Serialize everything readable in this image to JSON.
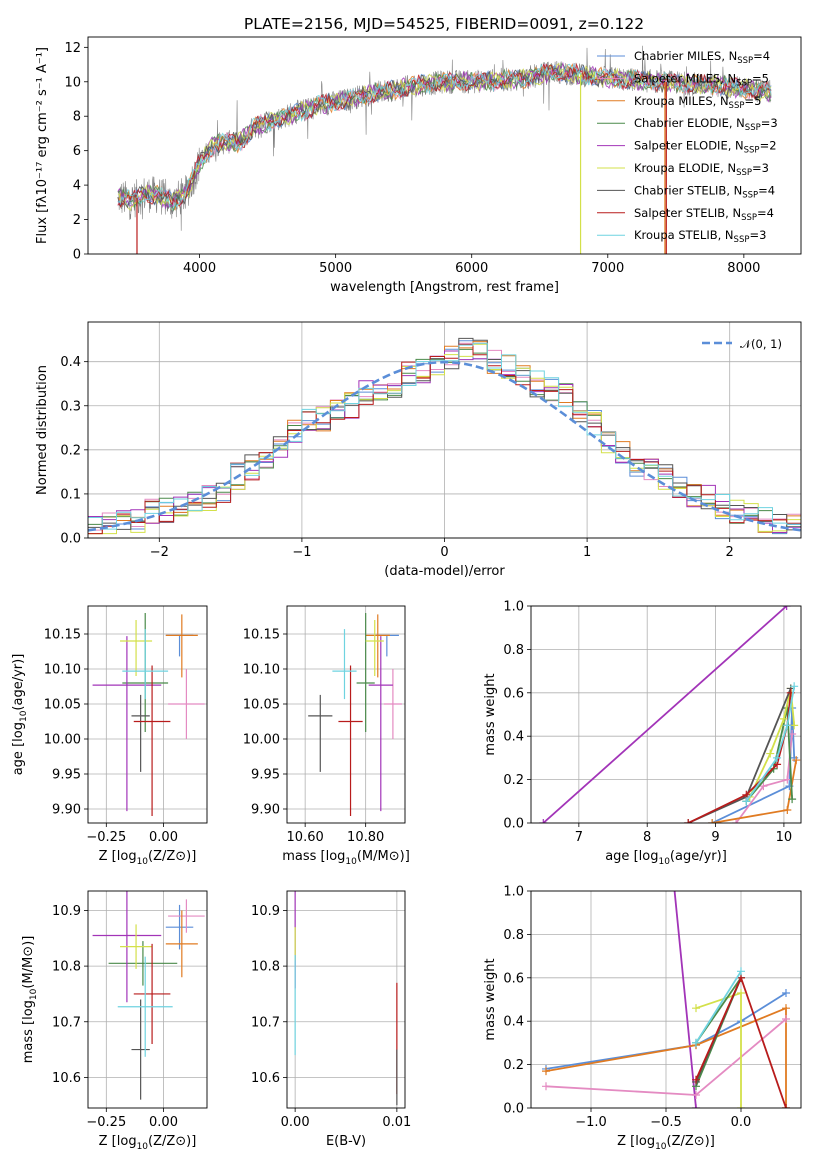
{
  "title": "PLATE=2156, MJD=54525, FIBERID=0091, z=0.122",
  "colors": {
    "Chabrier MILES": "#5b8ed8",
    "Salpeter MILES": "#e48bc2",
    "Kroupa MILES": "#e07b22",
    "Chabrier ELODIE": "#4a8a4a",
    "Salpeter ELODIE": "#a234b8",
    "Kroupa ELODIE": "#d3e04a",
    "Chabrier STELIB": "#555555",
    "Salpeter STELIB": "#b81c1c",
    "Kroupa STELIB": "#6fd3e0",
    "data": "#808080",
    "normal": "#5b8ed8"
  },
  "chart_data": [
    {
      "type": "line",
      "title": "PLATE=2156, MJD=54525, FIBERID=0091, z=0.122",
      "xlabel": "wavelength [Angstrom, rest frame]",
      "ylabel": "Flux [fλ10⁻¹⁷ erg cm⁻² s⁻¹ A⁻¹]",
      "xlim": [
        3180,
        8420
      ],
      "ylim": [
        0,
        12.6
      ],
      "xticks": [
        4000,
        5000,
        6000,
        7000,
        8000
      ],
      "yticks": [
        0,
        2,
        4,
        6,
        8,
        10,
        12
      ],
      "legend_position": "top-right",
      "continuum": {
        "x": [
          3400,
          3500,
          3600,
          3700,
          3800,
          3900,
          4000,
          4100,
          4200,
          4300,
          4400,
          4500,
          4600,
          4700,
          4800,
          4900,
          5000,
          5200,
          5400,
          5600,
          5800,
          6000,
          6200,
          6400,
          6600,
          6800,
          7000,
          7200,
          7400,
          7600,
          7800,
          8000,
          8200
        ],
        "y": [
          3.3,
          3.1,
          3.5,
          3.4,
          3.0,
          3.5,
          5.3,
          6.3,
          6.5,
          6.5,
          7.4,
          7.7,
          7.9,
          8.2,
          8.4,
          8.7,
          8.8,
          9.2,
          9.5,
          9.8,
          10.0,
          10.0,
          10.1,
          10.2,
          10.6,
          10.4,
          10.2,
          10.1,
          10.0,
          9.9,
          9.8,
          9.6,
          9.4
        ]
      },
      "series": [
        {
          "name": "Chabrier MILES, NSSP=4",
          "legend_base": "Chabrier MILES, N",
          "legend_sub": "SSP",
          "legend_tail": "=4"
        },
        {
          "name": "Salpeter MILES, NSSP=5",
          "legend_base": "Salpeter MILES, N",
          "legend_sub": "SSP",
          "legend_tail": "=5"
        },
        {
          "name": "Kroupa MILES, NSSP=5",
          "legend_base": "Kroupa MILES, N",
          "legend_sub": "SSP",
          "legend_tail": "=5"
        },
        {
          "name": "Chabrier ELODIE, NSSP=3",
          "legend_base": "Chabrier ELODIE, N",
          "legend_sub": "SSP",
          "legend_tail": "=3"
        },
        {
          "name": "Salpeter ELODIE, NSSP=2",
          "legend_base": "Salpeter ELODIE, N",
          "legend_sub": "SSP",
          "legend_tail": "=2"
        },
        {
          "name": "Kroupa ELODIE, NSSP=3",
          "legend_base": "Kroupa ELODIE, N",
          "legend_sub": "SSP",
          "legend_tail": "=3"
        },
        {
          "name": "Chabrier STELIB, NSSP=4",
          "legend_base": "Chabrier STELIB, N",
          "legend_sub": "SSP",
          "legend_tail": "=4"
        },
        {
          "name": "Salpeter STELIB, NSSP=4",
          "legend_base": "Salpeter STELIB, N",
          "legend_sub": "SSP",
          "legend_tail": "=4"
        },
        {
          "name": "Kroupa STELIB, NSSP=3",
          "legend_base": "Kroupa STELIB, N",
          "legend_sub": "SSP",
          "legend_tail": "=3"
        }
      ],
      "drops": [
        {
          "model": "Salpeter STELIB",
          "x": 3540
        },
        {
          "model": "Kroupa ELODIE",
          "x": 6800
        },
        {
          "model": "Kroupa MILES",
          "x": 7420
        },
        {
          "model": "Salpeter STELIB",
          "x": 7430
        }
      ]
    },
    {
      "type": "line",
      "xlabel": "(data-model)/error",
      "ylabel": "Normed distribution",
      "xlim": [
        -2.5,
        2.5
      ],
      "ylim": [
        0,
        0.49
      ],
      "xticks": [
        -2,
        -1,
        0,
        1,
        2
      ],
      "yticks": [
        0.0,
        0.1,
        0.2,
        0.3,
        0.4
      ],
      "legend": "𝒩(0, 1)",
      "legend_position": "top-right",
      "bin_edges": [
        -2.5,
        -2.4,
        -2.3,
        -2.2,
        -2.1,
        -2.0,
        -1.9,
        -1.8,
        -1.7,
        -1.6,
        -1.5,
        -1.4,
        -1.3,
        -1.2,
        -1.1,
        -1.0,
        -0.9,
        -0.8,
        -0.7,
        -0.6,
        -0.5,
        -0.4,
        -0.3,
        -0.2,
        -0.1,
        0.0,
        0.1,
        0.2,
        0.3,
        0.4,
        0.5,
        0.6,
        0.7,
        0.8,
        0.9,
        1.0,
        1.1,
        1.2,
        1.3,
        1.4,
        1.5,
        1.6,
        1.7,
        1.8,
        1.9,
        2.0,
        2.1,
        2.2,
        2.3,
        2.4,
        2.5
      ],
      "base_values": [
        0.02,
        0.03,
        0.035,
        0.04,
        0.06,
        0.065,
        0.07,
        0.08,
        0.09,
        0.1,
        0.14,
        0.16,
        0.17,
        0.2,
        0.24,
        0.27,
        0.27,
        0.29,
        0.3,
        0.33,
        0.33,
        0.34,
        0.37,
        0.38,
        0.4,
        0.41,
        0.43,
        0.42,
        0.4,
        0.39,
        0.37,
        0.35,
        0.34,
        0.32,
        0.29,
        0.26,
        0.22,
        0.19,
        0.16,
        0.15,
        0.14,
        0.12,
        0.1,
        0.09,
        0.07,
        0.06,
        0.05,
        0.04,
        0.03,
        0.025
      ],
      "normal_curve": {
        "mean": 0,
        "sigma": 1
      }
    },
    {
      "type": "scatter",
      "xlabel": "Z [log10(Z/Z⊙)]",
      "ylabel": "age  [log10(age/yr)]",
      "xlim": [
        -0.33,
        0.19
      ],
      "ylim": [
        9.88,
        10.19
      ],
      "xticks": [
        -0.25,
        0.0
      ],
      "yticks": [
        9.9,
        9.95,
        10.0,
        10.05,
        10.1,
        10.15
      ],
      "points": [
        {
          "model": "Chabrier MILES",
          "x": 0.07,
          "y": 10.148,
          "xerr": 0.06,
          "yerr_lo": 0.03,
          "yerr_hi": 0.0
        },
        {
          "model": "Salpeter MILES",
          "x": 0.1,
          "y": 10.05,
          "xerr": 0.08,
          "yerr_lo": 0.05,
          "yerr_hi": 0.05
        },
        {
          "model": "Kroupa MILES",
          "x": 0.08,
          "y": 10.148,
          "xerr": 0.07,
          "yerr_lo": 0.06,
          "yerr_hi": 0.03
        },
        {
          "model": "Chabrier ELODIE",
          "x": -0.08,
          "y": 10.08,
          "xerr": 0.1,
          "yerr_lo": 0.07,
          "yerr_hi": 0.1
        },
        {
          "model": "Salpeter ELODIE",
          "x": -0.16,
          "y": 10.077,
          "xerr": 0.15,
          "yerr_lo": 0.18,
          "yerr_hi": 0.07
        },
        {
          "model": "Kroupa ELODIE",
          "x": -0.12,
          "y": 10.14,
          "xerr": 0.07,
          "yerr_lo": 0.05,
          "yerr_hi": 0.03
        },
        {
          "model": "Chabrier STELIB",
          "x": -0.1,
          "y": 10.033,
          "xerr": 0.04,
          "yerr_lo": 0.08,
          "yerr_hi": 0.03
        },
        {
          "model": "Salpeter STELIB",
          "x": -0.05,
          "y": 10.025,
          "xerr": 0.08,
          "yerr_lo": 0.135,
          "yerr_hi": 0.08
        },
        {
          "model": "Kroupa STELIB",
          "x": -0.08,
          "y": 10.097,
          "xerr": 0.1,
          "yerr_lo": 0.04,
          "yerr_hi": 0.06
        }
      ]
    },
    {
      "type": "scatter",
      "xlabel": "mass [log10(M/M⊙)]",
      "ylabel": "",
      "xlim": [
        10.54,
        10.93
      ],
      "ylim": [
        9.88,
        10.19
      ],
      "xticks": [
        10.6,
        10.8
      ],
      "yticks": [
        9.9,
        9.95,
        10.0,
        10.05,
        10.1,
        10.15
      ],
      "points": [
        {
          "model": "Chabrier MILES",
          "x": 10.87,
          "y": 10.148,
          "xerr": 0.04,
          "yerr_lo": 0.03,
          "yerr_hi": 0.0
        },
        {
          "model": "Salpeter MILES",
          "x": 10.89,
          "y": 10.05,
          "xerr": 0.03,
          "yerr_lo": 0.05,
          "yerr_hi": 0.05
        },
        {
          "model": "Kroupa MILES",
          "x": 10.84,
          "y": 10.148,
          "xerr": 0.04,
          "yerr_lo": 0.06,
          "yerr_hi": 0.03
        },
        {
          "model": "Chabrier ELODIE",
          "x": 10.8,
          "y": 10.08,
          "xerr": 0.03,
          "yerr_lo": 0.07,
          "yerr_hi": 0.1
        },
        {
          "model": "Salpeter ELODIE",
          "x": 10.85,
          "y": 10.077,
          "xerr": 0.04,
          "yerr_lo": 0.18,
          "yerr_hi": 0.07
        },
        {
          "model": "Kroupa ELODIE",
          "x": 10.83,
          "y": 10.14,
          "xerr": 0.03,
          "yerr_lo": 0.05,
          "yerr_hi": 0.03
        },
        {
          "model": "Chabrier STELIB",
          "x": 10.65,
          "y": 10.033,
          "xerr": 0.04,
          "yerr_lo": 0.08,
          "yerr_hi": 0.03
        },
        {
          "model": "Salpeter STELIB",
          "x": 10.75,
          "y": 10.025,
          "xerr": 0.04,
          "yerr_lo": 0.135,
          "yerr_hi": 0.08
        },
        {
          "model": "Kroupa STELIB",
          "x": 10.73,
          "y": 10.097,
          "xerr": 0.04,
          "yerr_lo": 0.04,
          "yerr_hi": 0.06
        }
      ]
    },
    {
      "type": "line",
      "xlabel": "age  [log10(age/yr)]",
      "ylabel": "mass weight",
      "xlim": [
        6.3,
        10.25
      ],
      "ylim": [
        0,
        1.0
      ],
      "xticks": [
        7,
        8,
        9,
        10
      ],
      "yticks": [
        0.0,
        0.2,
        0.4,
        0.6,
        0.8,
        1.0
      ],
      "series": [
        {
          "model": "Salpeter ELODIE",
          "x": [
            6.48,
            10.04
          ],
          "y": [
            0.0,
            1.0
          ]
        },
        {
          "model": "Chabrier MILES",
          "x": [
            8.95,
            10.08,
            10.12,
            10.15
          ],
          "y": [
            0.0,
            0.17,
            0.53,
            0.3
          ]
        },
        {
          "model": "Salpeter MILES",
          "x": [
            9.3,
            9.7,
            10.05,
            10.12
          ],
          "y": [
            0.0,
            0.17,
            0.2,
            0.41
          ]
        },
        {
          "model": "Kroupa MILES",
          "x": [
            8.95,
            10.05,
            10.18
          ],
          "y": [
            0.0,
            0.06,
            0.29
          ]
        },
        {
          "model": "Chabrier ELODIE",
          "x": [
            9.45,
            9.85,
            10.05,
            10.12
          ],
          "y": [
            0.1,
            0.25,
            0.53,
            0.11
          ]
        },
        {
          "model": "Kroupa ELODIE",
          "x": [
            9.5,
            9.8,
            10.0,
            10.1,
            10.15
          ],
          "y": [
            0.12,
            0.32,
            0.48,
            0.62,
            0.45
          ]
        },
        {
          "model": "Chabrier STELIB",
          "x": [
            8.6,
            9.45,
            10.1
          ],
          "y": [
            0.0,
            0.12,
            0.62
          ]
        },
        {
          "model": "Salpeter STELIB",
          "x": [
            8.6,
            9.45,
            9.9,
            10.05,
            10.1
          ],
          "y": [
            0.0,
            0.13,
            0.27,
            0.45,
            0.6
          ]
        },
        {
          "model": "Kroupa STELIB",
          "x": [
            9.45,
            9.9,
            10.05,
            10.15
          ],
          "y": [
            0.1,
            0.3,
            0.45,
            0.63
          ]
        }
      ]
    },
    {
      "type": "scatter",
      "xlabel": "Z [log10(Z/Z⊙)]",
      "ylabel": "mass [log10(M/M⊙)]",
      "xlim": [
        -0.33,
        0.19
      ],
      "ylim": [
        10.545,
        10.935
      ],
      "xticks": [
        -0.25,
        0.0
      ],
      "yticks": [
        10.6,
        10.7,
        10.8,
        10.9
      ],
      "points": [
        {
          "model": "Chabrier MILES",
          "x": 0.07,
          "y": 10.87,
          "xerr": 0.06,
          "yerr": 0.04
        },
        {
          "model": "Salpeter MILES",
          "x": 0.1,
          "y": 10.89,
          "xerr": 0.08,
          "yerr": 0.03
        },
        {
          "model": "Kroupa MILES",
          "x": 0.08,
          "y": 10.84,
          "xerr": 0.07,
          "yerr": 0.06
        },
        {
          "model": "Chabrier ELODIE",
          "x": -0.09,
          "y": 10.805,
          "xerr": 0.15,
          "yerr": 0.04
        },
        {
          "model": "Salpeter ELODIE",
          "x": -0.16,
          "y": 10.855,
          "xerr": 0.15,
          "yerr": 0.12
        },
        {
          "model": "Kroupa ELODIE",
          "x": -0.12,
          "y": 10.835,
          "xerr": 0.07,
          "yerr": 0.04
        },
        {
          "model": "Chabrier STELIB",
          "x": -0.1,
          "y": 10.65,
          "xerr": 0.04,
          "yerr": 0.09
        },
        {
          "model": "Salpeter STELIB",
          "x": -0.05,
          "y": 10.75,
          "xerr": 0.08,
          "yerr": 0.09
        },
        {
          "model": "Kroupa STELIB",
          "x": -0.08,
          "y": 10.727,
          "xerr": 0.12,
          "yerr": 0.09
        }
      ]
    },
    {
      "type": "scatter",
      "xlabel": "E(B-V)",
      "ylabel": "",
      "xlim": [
        -0.0008,
        0.0108
      ],
      "ylim": [
        10.545,
        10.935
      ],
      "xticks": [
        0.0,
        0.01
      ],
      "xticklabels": [
        "0.00",
        "0.01"
      ],
      "yticks": [
        10.6,
        10.7,
        10.8,
        10.9
      ],
      "points": [
        {
          "model": "Salpeter ELODIE",
          "x": 0.0,
          "y": 10.85,
          "yerr": 0.09
        },
        {
          "model": "Kroupa ELODIE",
          "x": 0.0,
          "y": 10.84,
          "yerr": 0.03
        },
        {
          "model": "Kroupa STELIB",
          "x": 0.0,
          "y": 10.73,
          "yerr": 0.09
        },
        {
          "model": "Salpeter STELIB",
          "x": 0.01,
          "y": 10.67,
          "yerr": 0.1
        },
        {
          "model": "Chabrier STELIB",
          "x": 0.01,
          "y": 10.6,
          "yerr": 0.05
        }
      ]
    },
    {
      "type": "line",
      "xlabel": "Z [log10(Z/Z⊙)]",
      "ylabel": "mass weight",
      "xlim": [
        -1.4,
        0.4
      ],
      "ylim": [
        0,
        1.0
      ],
      "xticks": [
        -1.0,
        -0.5,
        0.0
      ],
      "yticks": [
        0.0,
        0.2,
        0.4,
        0.6,
        0.8,
        1.0
      ],
      "series": [
        {
          "model": "Salpeter ELODIE",
          "x": [
            -0.45,
            -0.3
          ],
          "y": [
            1.05,
            0.0
          ]
        },
        {
          "model": "Chabrier MILES",
          "x": [
            -1.3,
            -0.3,
            0.0,
            0.3
          ],
          "y": [
            0.18,
            0.29,
            0.4,
            0.53
          ]
        },
        {
          "model": "Kroupa MILES",
          "x": [
            -1.3,
            -0.3,
            0.3,
            0.3
          ],
          "y": [
            0.17,
            0.29,
            0.46,
            0.0
          ]
        },
        {
          "model": "Salpeter MILES",
          "x": [
            -1.3,
            -0.3,
            0.3
          ],
          "y": [
            0.1,
            0.06,
            0.41
          ]
        },
        {
          "model": "Kroupa ELODIE",
          "x": [
            -0.3,
            0.0,
            0.0
          ],
          "y": [
            0.46,
            0.53,
            0.0
          ]
        },
        {
          "model": "Chabrier ELODIE",
          "x": [
            -0.3,
            0.0,
            -0.3
          ],
          "y": [
            0.3,
            0.6,
            0.1
          ]
        },
        {
          "model": "Chabrier STELIB",
          "x": [
            -0.3,
            0.0
          ],
          "y": [
            0.12,
            0.6
          ]
        },
        {
          "model": "Salpeter STELIB",
          "x": [
            -0.3,
            0.0,
            0.3
          ],
          "y": [
            0.13,
            0.6,
            0.0
          ]
        },
        {
          "model": "Kroupa STELIB",
          "x": [
            -0.3,
            0.0
          ],
          "y": [
            0.3,
            0.63
          ]
        }
      ]
    }
  ]
}
